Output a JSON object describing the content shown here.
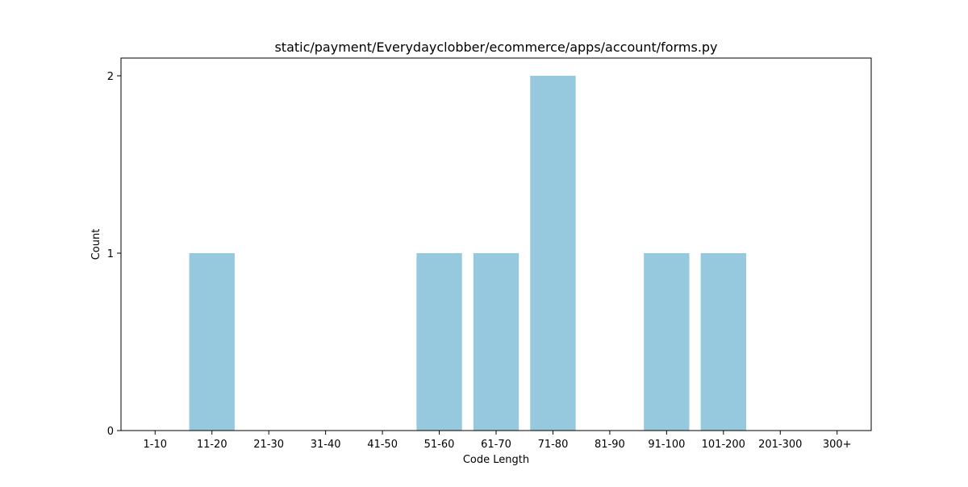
{
  "chart_data": {
    "type": "bar",
    "title": "static/payment/Everydayclobber/ecommerce/apps/account/forms.py",
    "xlabel": "Code Length",
    "ylabel": "Count",
    "categories": [
      "1-10",
      "11-20",
      "21-30",
      "31-40",
      "41-50",
      "51-60",
      "61-70",
      "71-80",
      "81-90",
      "91-100",
      "101-200",
      "201-300",
      "300+"
    ],
    "values": [
      0,
      1,
      0,
      0,
      0,
      1,
      1,
      2,
      0,
      1,
      1,
      0,
      0
    ],
    "ylim": [
      0,
      2.1
    ],
    "yticks": [
      0,
      1,
      2
    ],
    "bar_color": "#96c9dd",
    "grid": false,
    "legend": "none"
  }
}
